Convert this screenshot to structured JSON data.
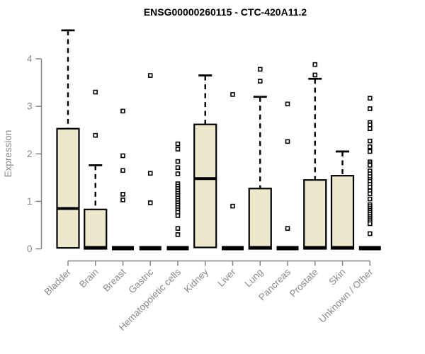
{
  "chart_data": {
    "type": "boxplot",
    "title": "ENSG00000260115 - CTC-420A11.2",
    "ylabel": "Expression",
    "xlabel": "",
    "ylim": [
      0,
      4
    ],
    "yticks": [
      0,
      1,
      2,
      3,
      4
    ],
    "grid": false,
    "legend": "none",
    "categories": [
      "Bladder",
      "Brain",
      "Breast",
      "Gastric",
      "Hematopoietic cells",
      "Kidney",
      "Liver",
      "Lung",
      "Pancreas",
      "Prostate",
      "Skin",
      "Unknown / Other"
    ],
    "boxes": [
      {
        "category": "Bladder",
        "q1": 0.02,
        "median": 0.85,
        "q3": 2.53,
        "whisker_low": 0,
        "whisker_high": 4.6,
        "outliers": []
      },
      {
        "category": "Brain",
        "q1": 0,
        "median": 0.03,
        "q3": 0.83,
        "whisker_low": 0,
        "whisker_high": 1.76,
        "outliers": [
          3.3,
          2.39
        ]
      },
      {
        "category": "Breast",
        "q1": 0,
        "median": 0.01,
        "q3": 0.03,
        "whisker_low": 0,
        "whisker_high": 0.03,
        "outliers": [
          2.9,
          1.96,
          1.65,
          1.15,
          1.03
        ]
      },
      {
        "category": "Gastric",
        "q1": 0,
        "median": 0.01,
        "q3": 0.03,
        "whisker_low": 0,
        "whisker_high": 0.03,
        "outliers": [
          3.65,
          1.59,
          0.97
        ]
      },
      {
        "category": "Hematopoietic cells",
        "q1": 0,
        "median": 0.01,
        "q3": 0.03,
        "whisker_low": 0,
        "whisker_high": 0.03,
        "outliers": [
          2.21,
          2.1,
          1.84,
          1.71,
          1.58,
          1.37,
          1.32,
          1.27,
          1.22,
          1.17,
          1.12,
          1.07,
          1.02,
          0.97,
          0.92,
          0.87,
          0.82,
          0.77,
          0.7,
          0.43,
          0.3
        ]
      },
      {
        "category": "Kidney",
        "q1": 0.03,
        "median": 1.48,
        "q3": 2.62,
        "whisker_low": 0,
        "whisker_high": 3.65,
        "outliers": []
      },
      {
        "category": "Liver",
        "q1": 0,
        "median": 0.01,
        "q3": 0.03,
        "whisker_low": 0,
        "whisker_high": 0.03,
        "outliers": [
          3.25,
          0.9
        ]
      },
      {
        "category": "Lung",
        "q1": 0,
        "median": 0.03,
        "q3": 1.27,
        "whisker_low": 0,
        "whisker_high": 3.2,
        "outliers": [
          3.78,
          3.53
        ]
      },
      {
        "category": "Pancreas",
        "q1": 0,
        "median": 0.01,
        "q3": 0.03,
        "whisker_low": 0,
        "whisker_high": 0.03,
        "outliers": [
          3.05,
          2.26,
          0.43
        ]
      },
      {
        "category": "Prostate",
        "q1": 0,
        "median": 0.03,
        "q3": 1.45,
        "whisker_low": 0,
        "whisker_high": 3.58,
        "outliers": [
          3.88,
          3.66
        ]
      },
      {
        "category": "Skin",
        "q1": 0,
        "median": 0.03,
        "q3": 1.54,
        "whisker_low": 0,
        "whisker_high": 2.05,
        "outliers": []
      },
      {
        "category": "Unknown / Other",
        "q1": 0,
        "median": 0.01,
        "q3": 0.03,
        "whisker_low": 0,
        "whisker_high": 0.03,
        "outliers": [
          3.17,
          2.95,
          2.66,
          2.61,
          2.53,
          2.27,
          2.15,
          2.05,
          1.83,
          1.79,
          1.76,
          1.64,
          1.58,
          1.52,
          1.46,
          1.42,
          1.36,
          1.3,
          1.22,
          1.16,
          1.05,
          0.93,
          0.89,
          0.85,
          0.81,
          0.77,
          0.73,
          0.69,
          0.65,
          0.61,
          0.57,
          0.53,
          0.32
        ]
      }
    ],
    "colors": {
      "box_fill": "#EDE8CC",
      "box_border": "#000000",
      "median": "#000000",
      "whisker": "#000000",
      "outlier_stroke": "#000000",
      "outlier_fill": "#FFFFFF",
      "axis": "#848484",
      "label": "#8A8A8A",
      "title": "#000000",
      "background": "#FFFFFF"
    }
  }
}
